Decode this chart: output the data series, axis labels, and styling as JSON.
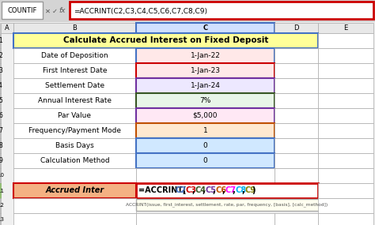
{
  "title": "Calculate Accrued Interest on Fixed Deposit",
  "formula_bar_text": "=ACCRINT(C2,C3,C4,C5,C6,C7,C8,C9)",
  "formula_bar_name": "COUNTIF",
  "rows": [
    {
      "label": "Date of Deposition",
      "value": "1-Jan-22",
      "value_bg": "#FFE8E8",
      "border": "#4472C4"
    },
    {
      "label": "First Interest Date",
      "value": "1-Jan-23",
      "value_bg": "#FFE8E8",
      "border": "#CC0000"
    },
    {
      "label": "Settlement Date",
      "value": "1-Jan-24",
      "value_bg": "#EDE8FF",
      "border": "#7030A0"
    },
    {
      "label": "Annual Interest Rate",
      "value": "7%",
      "value_bg": "#E8F5E8",
      "border": "#375623"
    },
    {
      "label": "Par Value",
      "value": "$5,000",
      "value_bg": "#FFE8F5",
      "border": "#7030A0"
    },
    {
      "label": "Frequency/Payment Mode",
      "value": "1",
      "value_bg": "#FFE8D0",
      "border": "#C05000"
    },
    {
      "label": "Basis Days",
      "value": "0",
      "value_bg": "#D0E8FF",
      "border": "#4472C4"
    },
    {
      "label": "Calculation Method",
      "value": "0",
      "value_bg": "#D0E8FF",
      "border": "#4472C4"
    }
  ],
  "result_row": {
    "label": "Accrued Inter",
    "label_bg": "#F4B183",
    "formula_parts": [
      {
        "text": "=ACCRINT(",
        "color": "#000000"
      },
      {
        "text": "C2",
        "color": "#4472C4"
      },
      {
        "text": ",",
        "color": "#000000"
      },
      {
        "text": "C3",
        "color": "#CC0000"
      },
      {
        "text": ",",
        "color": "#000000"
      },
      {
        "text": "C4",
        "color": "#375623"
      },
      {
        "text": ",",
        "color": "#000000"
      },
      {
        "text": "C5",
        "color": "#7030A0"
      },
      {
        "text": ",",
        "color": "#000000"
      },
      {
        "text": "C6",
        "color": "#C05000"
      },
      {
        "text": ",",
        "color": "#000000"
      },
      {
        "text": "C7",
        "color": "#FF00FF"
      },
      {
        "text": ",",
        "color": "#000000"
      },
      {
        "text": "C8",
        "color": "#00B0F0"
      },
      {
        "text": ",",
        "color": "#000000"
      },
      {
        "text": "C9",
        "color": "#808000"
      },
      {
        "text": ")",
        "color": "#000000"
      }
    ],
    "tooltip": "ACCRINT(issue, first_interest, settlement, rate, par, frequency, [basis], [calc_method])"
  }
}
